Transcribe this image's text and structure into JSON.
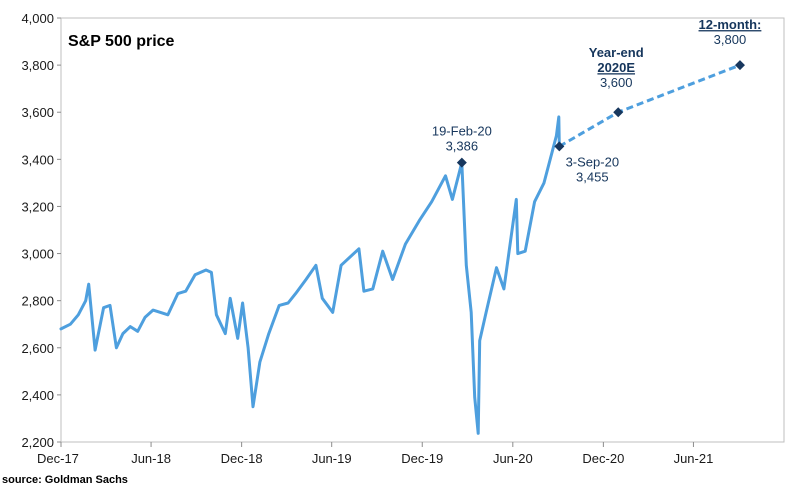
{
  "chart_data": {
    "type": "line",
    "title": "S&P 500 price",
    "xlabel": "",
    "ylabel": "",
    "ylim": [
      2200,
      4000
    ],
    "yticks": [
      2200,
      2400,
      2600,
      2800,
      3000,
      3200,
      3400,
      3600,
      3800,
      4000
    ],
    "ytick_labels": [
      "2,200",
      "2,400",
      "2,600",
      "2,800",
      "3,000",
      "3,200",
      "3,400",
      "3,600",
      "3,800",
      "4,000"
    ],
    "xlim": [
      "2017-12-01",
      "2021-12-01"
    ],
    "xticks": [
      "2017-12-01",
      "2018-06-01",
      "2018-12-01",
      "2019-06-01",
      "2019-12-01",
      "2020-06-01",
      "2020-12-01",
      "2021-06-01"
    ],
    "xtick_labels": [
      "Dec-17",
      "Jun-18",
      "Dec-18",
      "Jun-19",
      "Dec-19",
      "Jun-20",
      "Dec-20",
      "Jun-21"
    ],
    "grid": false,
    "series": [
      {
        "style": "solid",
        "color": "#4e9fde",
        "points": [
          [
            "2017-12-01",
            2680
          ],
          [
            "2017-12-20",
            2700
          ],
          [
            "2018-01-05",
            2740
          ],
          [
            "2018-01-20",
            2800
          ],
          [
            "2018-01-26",
            2870
          ],
          [
            "2018-02-08",
            2590
          ],
          [
            "2018-02-25",
            2770
          ],
          [
            "2018-03-10",
            2780
          ],
          [
            "2018-03-23",
            2600
          ],
          [
            "2018-04-05",
            2660
          ],
          [
            "2018-04-20",
            2690
          ],
          [
            "2018-05-05",
            2670
          ],
          [
            "2018-05-20",
            2730
          ],
          [
            "2018-06-05",
            2760
          ],
          [
            "2018-06-20",
            2750
          ],
          [
            "2018-07-05",
            2740
          ],
          [
            "2018-07-25",
            2830
          ],
          [
            "2018-08-10",
            2840
          ],
          [
            "2018-08-29",
            2910
          ],
          [
            "2018-09-20",
            2930
          ],
          [
            "2018-10-01",
            2920
          ],
          [
            "2018-10-11",
            2740
          ],
          [
            "2018-10-29",
            2660
          ],
          [
            "2018-11-08",
            2810
          ],
          [
            "2018-11-23",
            2640
          ],
          [
            "2018-12-03",
            2790
          ],
          [
            "2018-12-14",
            2600
          ],
          [
            "2018-12-24",
            2350
          ],
          [
            "2019-01-07",
            2540
          ],
          [
            "2019-01-25",
            2660
          ],
          [
            "2019-02-15",
            2780
          ],
          [
            "2019-03-05",
            2790
          ],
          [
            "2019-03-20",
            2830
          ],
          [
            "2019-04-10",
            2890
          ],
          [
            "2019-04-30",
            2950
          ],
          [
            "2019-05-13",
            2810
          ],
          [
            "2019-06-03",
            2750
          ],
          [
            "2019-06-20",
            2950
          ],
          [
            "2019-07-26",
            3020
          ],
          [
            "2019-08-05",
            2840
          ],
          [
            "2019-08-23",
            2850
          ],
          [
            "2019-09-12",
            3010
          ],
          [
            "2019-10-02",
            2890
          ],
          [
            "2019-10-28",
            3040
          ],
          [
            "2019-11-25",
            3140
          ],
          [
            "2019-12-20",
            3220
          ],
          [
            "2020-01-17",
            3330
          ],
          [
            "2020-01-31",
            3230
          ],
          [
            "2020-02-19",
            3386
          ],
          [
            "2020-02-28",
            2950
          ],
          [
            "2020-03-09",
            2750
          ],
          [
            "2020-03-16",
            2390
          ],
          [
            "2020-03-23",
            2237
          ],
          [
            "2020-03-26",
            2630
          ],
          [
            "2020-04-08",
            2750
          ],
          [
            "2020-04-29",
            2940
          ],
          [
            "2020-05-14",
            2850
          ],
          [
            "2020-06-08",
            3230
          ],
          [
            "2020-06-11",
            3000
          ],
          [
            "2020-06-26",
            3010
          ],
          [
            "2020-07-15",
            3220
          ],
          [
            "2020-08-03",
            3300
          ],
          [
            "2020-08-28",
            3500
          ],
          [
            "2020-09-02",
            3580
          ],
          [
            "2020-09-03",
            3455
          ]
        ]
      },
      {
        "style": "dashed",
        "color": "#4e9fde",
        "points": [
          [
            "2020-09-03",
            3455
          ],
          [
            "2020-12-31",
            3600
          ],
          [
            "2021-09-03",
            3800
          ]
        ]
      }
    ],
    "markers": [
      {
        "x": "2020-02-19",
        "y": 3386
      },
      {
        "x": "2020-09-03",
        "y": 3455
      },
      {
        "x": "2020-12-31",
        "y": 3600
      },
      {
        "x": "2021-09-03",
        "y": 3800
      }
    ],
    "annotations": [
      {
        "name": "annotation-feb-peak",
        "x": "2020-02-19",
        "y": 3386,
        "lines": [
          "19-Feb-20",
          "3,386"
        ],
        "placement": "above"
      },
      {
        "name": "annotation-sep-current",
        "x": "2020-09-03",
        "y": 3455,
        "lines": [
          "3-Sep-20",
          "3,455"
        ],
        "placement": "below-right"
      },
      {
        "name": "annotation-year-end",
        "x": "2020-12-31",
        "y": 3600,
        "lines": [
          "Year-end",
          "2020E",
          "3,600"
        ],
        "placement": "above"
      },
      {
        "name": "annotation-12-month",
        "x": "2021-09-03",
        "y": 3800,
        "lines": [
          "12-month:",
          "3,800"
        ],
        "placement": "above"
      }
    ]
  },
  "source": "source: Goldman Sachs"
}
